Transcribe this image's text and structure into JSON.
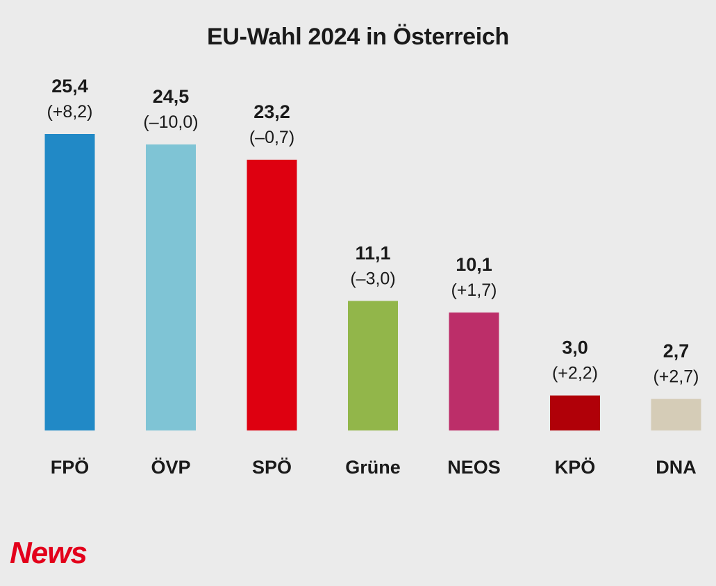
{
  "logo_text": "News",
  "chart_data": {
    "type": "bar",
    "title": "EU-Wahl 2024 in Österreich",
    "xlabel": "",
    "ylabel": "",
    "ylim": [
      0,
      25.4
    ],
    "grid": false,
    "legend": "none",
    "categories": [
      "FPÖ",
      "ÖVP",
      "SPÖ",
      "Grüne",
      "NEOS",
      "KPÖ",
      "DNA"
    ],
    "values": [
      25.4,
      24.5,
      23.2,
      11.1,
      10.1,
      3.0,
      2.7
    ],
    "value_labels": [
      "25,4",
      "24,5",
      "23,2",
      "11,1",
      "10,1",
      "3,0",
      "2,7"
    ],
    "change_labels": [
      "(+8,2)",
      "(–10,0)",
      "(–0,7)",
      "(–3,0)",
      "(+1,7)",
      "(+2,2)",
      "(+2,7)"
    ],
    "colors": [
      "#2189c6",
      "#7fc4d5",
      "#de0010",
      "#92b64a",
      "#bc2e69",
      "#b00008",
      "#d5ccb7"
    ]
  }
}
